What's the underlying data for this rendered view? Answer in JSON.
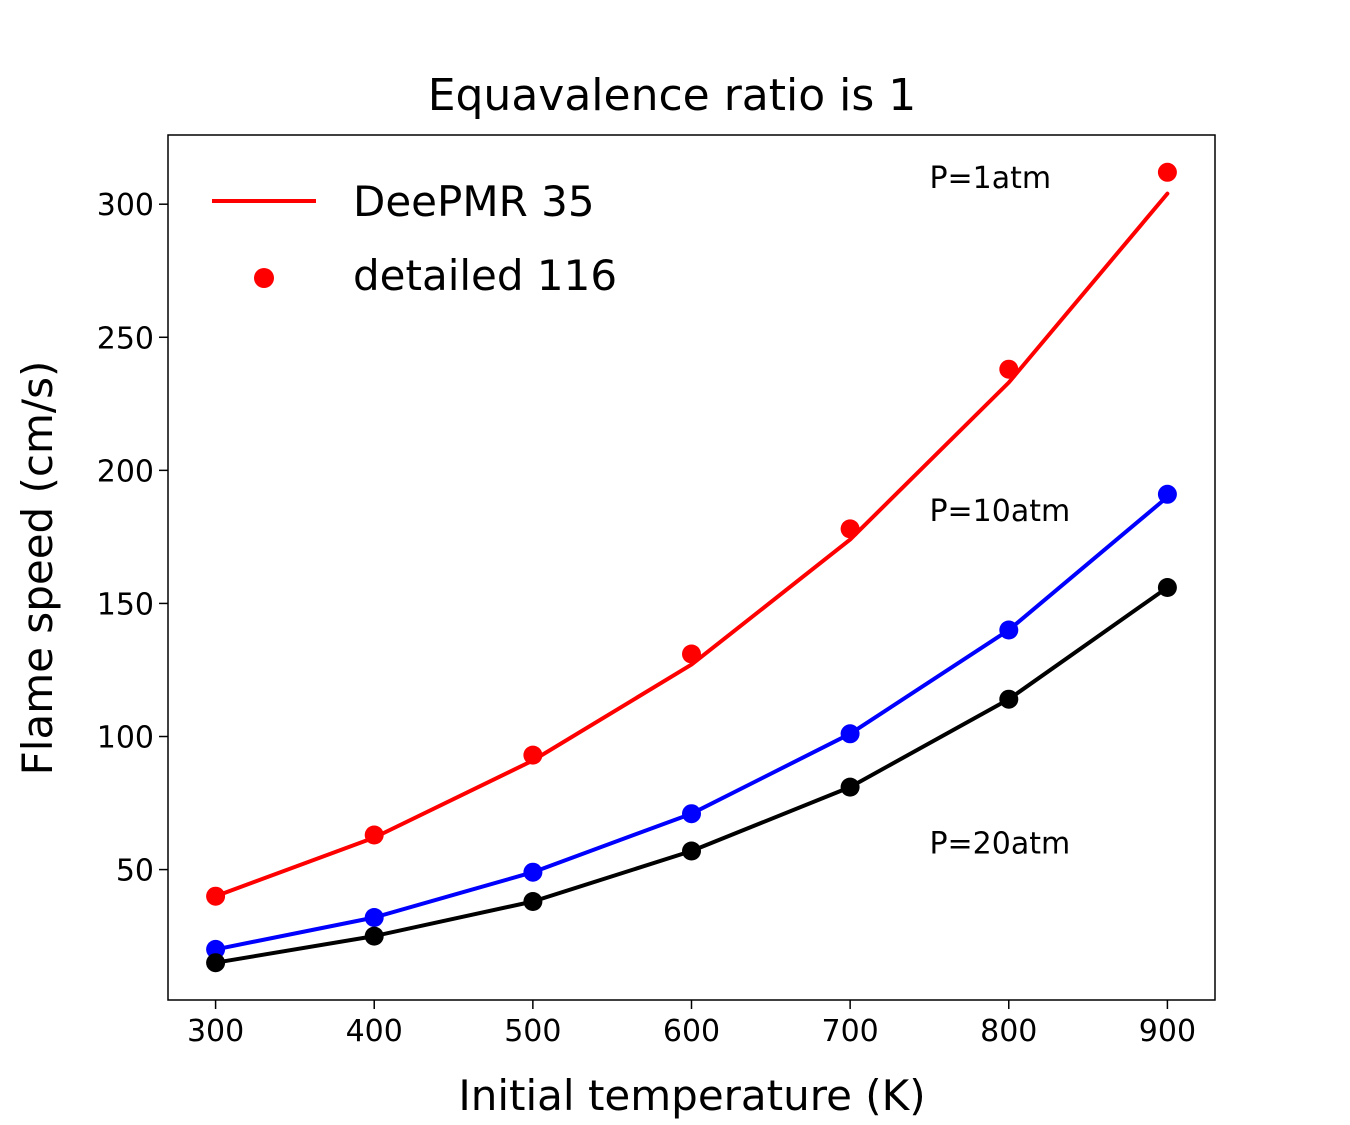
{
  "chart_data": {
    "type": "line",
    "title": "Equavalence ratio is 1",
    "xlabel": "Initial temperature (K)",
    "ylabel": "Flame speed (cm/s)",
    "xlim": [
      270,
      930
    ],
    "ylim": [
      1,
      326
    ],
    "xticks": [
      300,
      400,
      500,
      600,
      700,
      800,
      900
    ],
    "yticks": [
      50,
      100,
      150,
      200,
      250,
      300
    ],
    "grid": false,
    "legend_position": "top-left",
    "legend": [
      {
        "label": "DeePMR 35",
        "marker": "line"
      },
      {
        "label": "detailed 116",
        "marker": "dot"
      }
    ],
    "annotations": [
      {
        "text": "P=1atm",
        "x": 750,
        "y": 306
      },
      {
        "text": "P=10atm",
        "x": 750,
        "y": 181
      },
      {
        "text": "P=20atm",
        "x": 750,
        "y": 56
      }
    ],
    "x": [
      300,
      400,
      500,
      600,
      700,
      800,
      900
    ],
    "series": [
      {
        "color": "#ff0000",
        "model": [
          40,
          62,
          91,
          127,
          174,
          233,
          304
        ],
        "detailed": [
          40,
          63,
          93,
          131,
          178,
          238,
          312
        ]
      },
      {
        "color": "#0000ff",
        "model": [
          20,
          32,
          49,
          71,
          101,
          140,
          190
        ],
        "detailed": [
          20,
          32,
          49,
          71,
          101,
          140,
          191
        ]
      },
      {
        "color": "#000000",
        "model": [
          15,
          25,
          38,
          57,
          81,
          114,
          156
        ],
        "detailed": [
          15,
          25,
          38,
          57,
          81,
          114,
          156
        ]
      }
    ]
  }
}
